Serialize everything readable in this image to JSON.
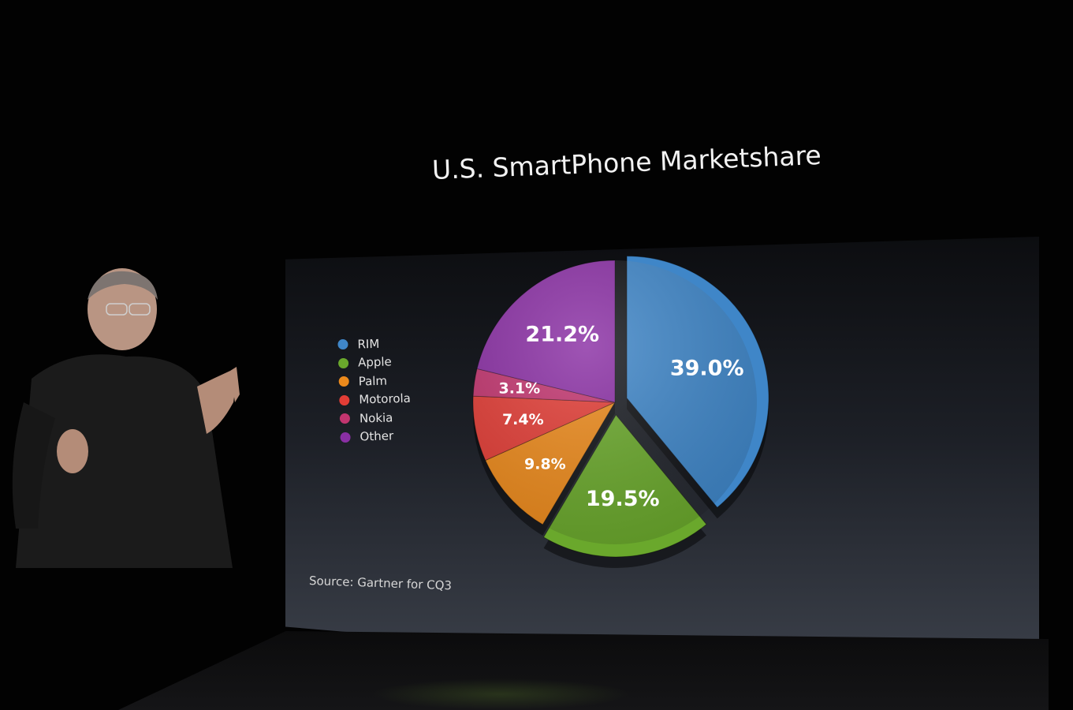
{
  "chart_data": {
    "type": "pie",
    "title": "U.S. SmartPhone Marketshare",
    "source": "Source:  Gartner for CQ3",
    "legend_position": "left",
    "categories": [
      "RIM",
      "Apple",
      "Palm",
      "Motorola",
      "Nokia",
      "Other"
    ],
    "values": [
      39.0,
      19.5,
      9.8,
      7.4,
      3.1,
      21.2
    ],
    "labels": [
      "39.0%",
      "19.5%",
      "9.8%",
      "7.4%",
      "3.1%",
      "21.2%"
    ],
    "colors": [
      "#3f86c8",
      "#6aa82c",
      "#ec8a1c",
      "#e23d36",
      "#c2356f",
      "#8a2fa4"
    ]
  }
}
